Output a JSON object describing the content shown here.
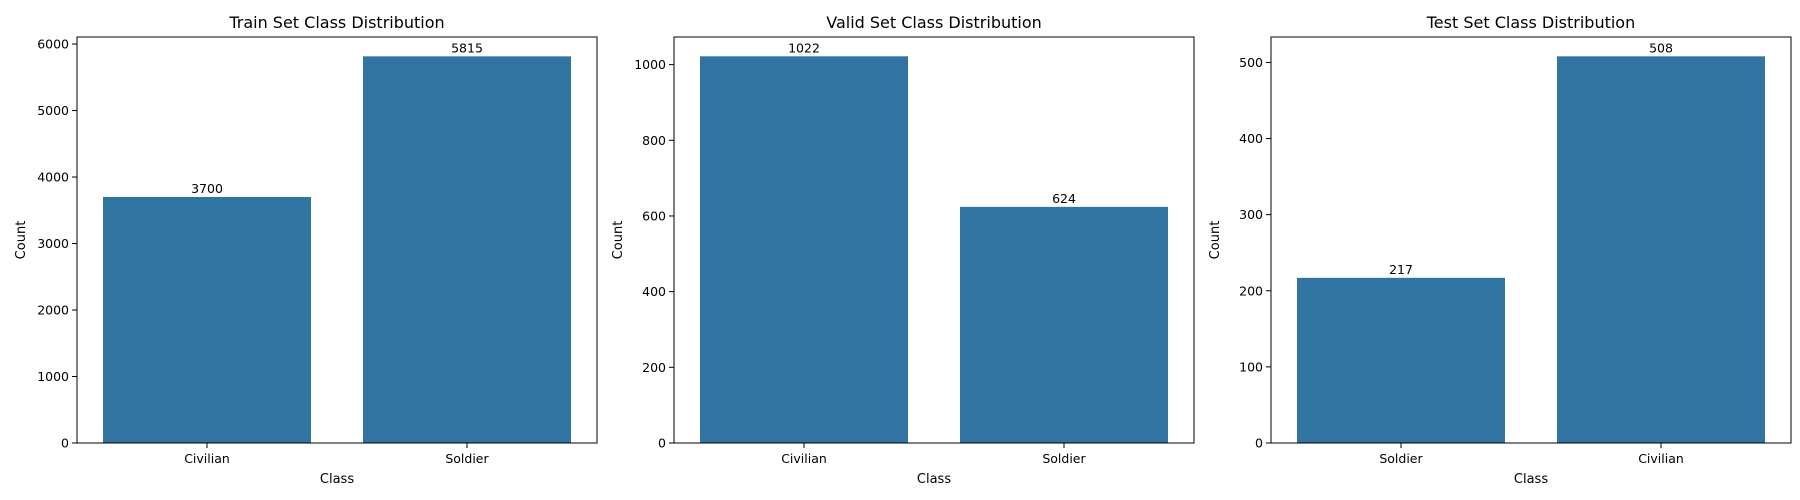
{
  "chart_data": [
    {
      "type": "bar",
      "title": "Train Set Class Distribution",
      "xlabel": "Class",
      "ylabel": "Count",
      "categories": [
        "Civilian",
        "Soldier"
      ],
      "values": [
        3700,
        5815
      ],
      "ylim": [
        0,
        6106
      ],
      "yticks": [
        0,
        1000,
        2000,
        3000,
        4000,
        5000,
        6000
      ],
      "bar_color": "#3274a1",
      "grid": false,
      "legend": "none"
    },
    {
      "type": "bar",
      "title": "Valid Set Class Distribution",
      "xlabel": "Class",
      "ylabel": "Count",
      "categories": [
        "Civilian",
        "Soldier"
      ],
      "values": [
        1022,
        624
      ],
      "ylim": [
        0,
        1073
      ],
      "yticks": [
        0,
        200,
        400,
        600,
        800,
        1000
      ],
      "bar_color": "#3274a1",
      "grid": false,
      "legend": "none"
    },
    {
      "type": "bar",
      "title": "Test Set Class Distribution",
      "xlabel": "Class",
      "ylabel": "Count",
      "categories": [
        "Soldier",
        "Civilian"
      ],
      "values": [
        217,
        508
      ],
      "ylim": [
        0,
        533.4
      ],
      "yticks": [
        0,
        100,
        200,
        300,
        400,
        500
      ],
      "bar_color": "#3274a1",
      "grid": false,
      "legend": "none"
    }
  ]
}
